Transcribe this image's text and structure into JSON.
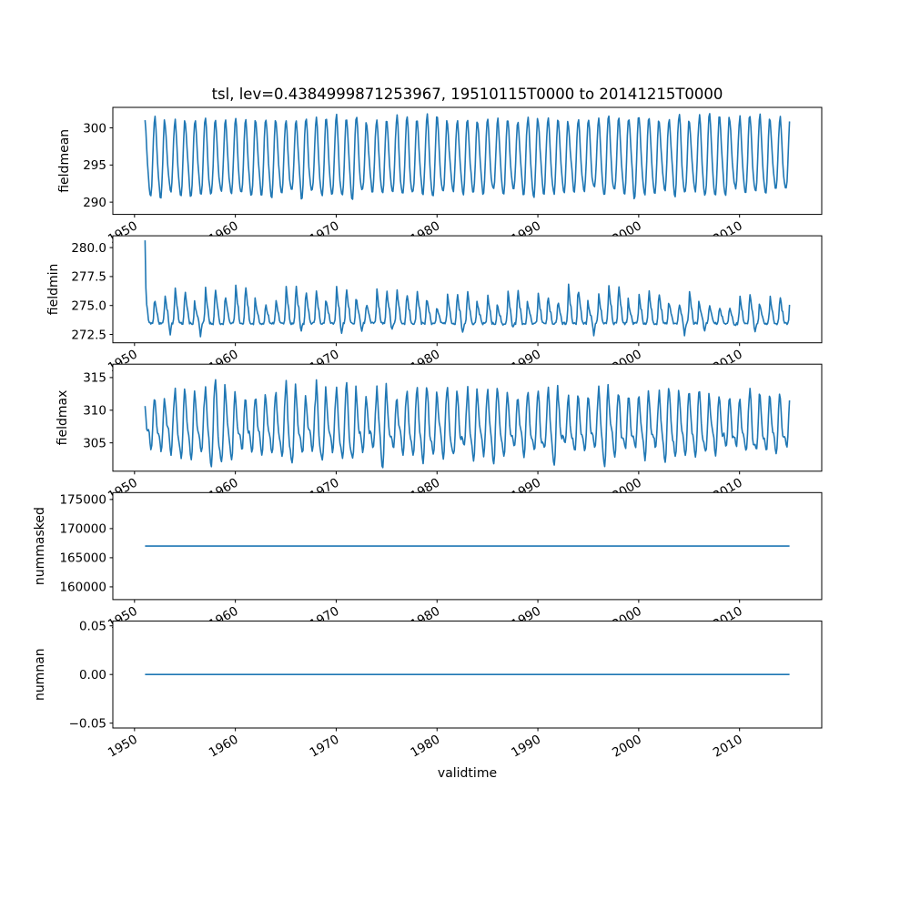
{
  "title": "tsl, lev=0.4384999871253967, 19510115T0000 to 20141215T0000",
  "xlabel": "validtime",
  "line_color": "#1f77b4",
  "axis_color": "#000000",
  "background": "#ffffff",
  "x_axis": {
    "ticks": [
      1950,
      1960,
      1970,
      1980,
      1990,
      2000,
      2010
    ],
    "tick_labels": [
      "1950",
      "1960",
      "1970",
      "1980",
      "1990",
      "2000",
      "2010"
    ],
    "lim": [
      1947.85,
      2018.15
    ],
    "data_start": 1951.0417,
    "data_end": 2014.9583,
    "n_points": 768,
    "frequency": "monthly samples, 15th of each month, 1951-01-15 to 2014-12-15"
  },
  "chart_data": [
    {
      "type": "line",
      "ylabel": "fieldmean",
      "yticks": [
        290,
        295,
        300
      ],
      "ytick_labels": [
        "290",
        "295",
        "300"
      ],
      "ylim": [
        288.35,
        302.76
      ],
      "series": [
        {
          "name": "fieldmean",
          "pattern": "annual-cycle",
          "mean": 295.6,
          "seasonal_peak_range": [
            299.5,
            302.1
          ],
          "seasonal_trough_range": [
            288.9,
            291.6
          ],
          "gen": {
            "seed": 11,
            "base": 295.6,
            "a1": 4.9,
            "a1_jitter": 0.55,
            "a2": 0.85,
            "phase2": 0.9,
            "noise": 0.18,
            "trend": 0.005
          }
        }
      ]
    },
    {
      "type": "line",
      "ylabel": "fieldmin",
      "yticks": [
        272.5,
        275.0,
        277.5,
        280.0
      ],
      "ytick_labels": [
        "272.5",
        "275.0",
        "277.5",
        "280.0"
      ],
      "ylim": [
        271.78,
        281.02
      ],
      "series": [
        {
          "name": "fieldmin",
          "pattern": "flat-base-annual-spikes",
          "baseline": 273.45,
          "spike_peak_range": [
            274.3,
            277.6
          ],
          "occasional_dip_min": 272.2,
          "start_value": 280.6,
          "gen": {
            "seed": 23,
            "base": 273.45,
            "amp": 2.3,
            "amp_jitter": 1.1,
            "sharpness": 2.6,
            "noise": 0.1,
            "start_value": 280.6,
            "start_decay": 0.06
          }
        }
      ]
    },
    {
      "type": "line",
      "ylabel": "fieldmax",
      "yticks": [
        305,
        310,
        315
      ],
      "ytick_labels": [
        "305",
        "310",
        "315"
      ],
      "ylim": [
        300.66,
        317.05
      ],
      "series": [
        {
          "name": "fieldmax",
          "pattern": "annual-cycle",
          "mean": 307.4,
          "seasonal_peak_range": [
            309.0,
            316.3
          ],
          "seasonal_trough_range": [
            301.5,
            303.2
          ],
          "gen": {
            "seed": 37,
            "base": 307.4,
            "a1": 4.4,
            "a1_jitter": 1.6,
            "a2": 1.5,
            "phase2": 0.9,
            "noise": 0.25,
            "trend": 0.0
          }
        }
      ]
    },
    {
      "type": "line",
      "ylabel": "nummasked",
      "yticks": [
        160000,
        165000,
        170000,
        175000
      ],
      "ytick_labels": [
        "160000",
        "165000",
        "170000",
        "175000"
      ],
      "ylim": [
        157815,
        176185
      ],
      "series": [
        {
          "name": "nummasked",
          "pattern": "constant",
          "value": 167000
        }
      ]
    },
    {
      "type": "line",
      "ylabel": "numnan",
      "yticks": [
        -0.05,
        0.0,
        0.05
      ],
      "ytick_labels": [
        "−0.05",
        "0.00",
        "0.05"
      ],
      "ylim": [
        -0.055,
        0.055
      ],
      "series": [
        {
          "name": "numnan",
          "pattern": "constant",
          "value": 0
        }
      ]
    }
  ]
}
